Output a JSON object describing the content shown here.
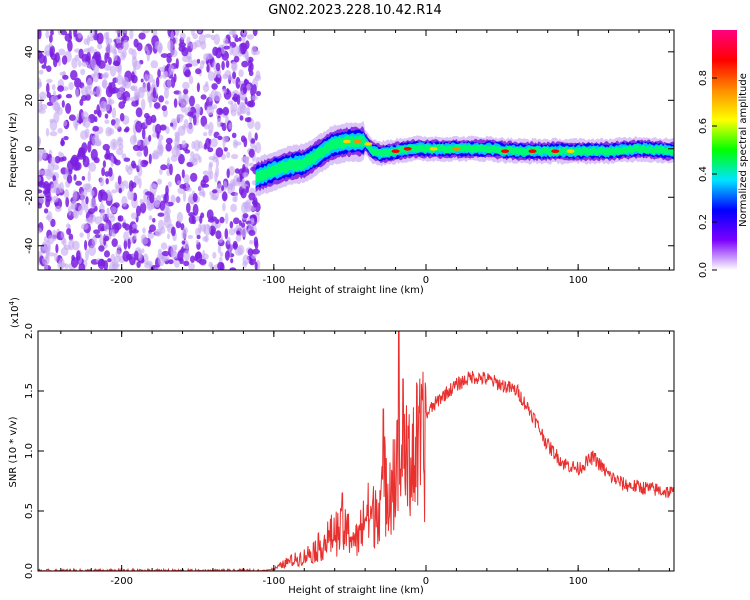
{
  "title": "GN02.2023.228.10.42.R14",
  "colors": {
    "snr_line": "#e8312f",
    "dense_noise": "#7a1ee0",
    "light_noise": "#c7a8f2"
  },
  "chart_data": [
    {
      "type": "heatmap",
      "xlabel": "Height of straight line (km)",
      "ylabel": "Frequency (Hz)",
      "xlim": [
        -255,
        163
      ],
      "ylim": [
        -50,
        49
      ],
      "x_ticks": [
        "-200",
        "-100",
        "0",
        "100"
      ],
      "y_ticks": [
        "-40",
        "-20",
        "0",
        "20",
        "40"
      ],
      "x_tick_values": [
        -200,
        -100,
        0,
        100
      ],
      "y_tick_values": [
        -40,
        -20,
        0,
        20,
        40
      ],
      "noise_region_x": [
        -255,
        -110
      ],
      "signal_track": {
        "x": [
          -112,
          -100,
          -90,
          -80,
          -70,
          -60,
          -50,
          -40,
          -35,
          -30,
          -20,
          -10,
          0,
          20,
          40,
          60,
          80,
          100,
          120,
          140,
          163
        ],
        "y": [
          -12,
          -9,
          -7,
          -6,
          -2,
          2,
          3,
          3,
          -1,
          -2,
          -1,
          0,
          0,
          0,
          0,
          -1,
          -1,
          -1,
          -1,
          0,
          -1
        ]
      },
      "colorbar": {
        "label": "Normalized spectral amplitude",
        "range": [
          0.0,
          1.0
        ],
        "ticks": [
          "0.0",
          "0.2",
          "0.4",
          "0.6",
          "0.8"
        ],
        "tick_values": [
          0.0,
          0.2,
          0.4,
          0.6,
          0.8
        ],
        "colormap": [
          "#ffffff",
          "#7b00ff",
          "#0000ff",
          "#00e5ff",
          "#00ff00",
          "#ffff00",
          "#ff8c00",
          "#ff0000",
          "#ff0080"
        ]
      }
    },
    {
      "type": "line",
      "xlabel": "Height of straight line (km)",
      "ylabel": "SNR (10 * v/v)",
      "y_multiplier": "(x10",
      "y_multiplier_exp": "4",
      "y_multiplier_close": ")",
      "xlim": [
        -255,
        163
      ],
      "ylim": [
        0.0,
        2.0
      ],
      "x_ticks": [
        "-200",
        "-100",
        "0",
        "100"
      ],
      "y_ticks": [
        "0.0",
        "0.5",
        "1.0",
        "1.5",
        "2.0"
      ],
      "x_tick_values": [
        -200,
        -100,
        0,
        100
      ],
      "y_tick_values": [
        0.0,
        0.5,
        1.0,
        1.5,
        2.0
      ],
      "series": [
        {
          "x": [
            -255,
            -110,
            -100,
            -90,
            -80,
            -70,
            -60,
            -50,
            -45,
            -40,
            -35,
            -30,
            -25,
            -20,
            -15,
            -10,
            0,
            10,
            20,
            30,
            40,
            50,
            60,
            70,
            80,
            90,
            100,
            110,
            120,
            130,
            140,
            150,
            163
          ],
          "y": [
            0.0,
            0.0,
            0.02,
            0.1,
            0.15,
            0.25,
            0.4,
            0.4,
            0.3,
            0.6,
            0.55,
            0.8,
            0.95,
            1.05,
            1.0,
            1.2,
            1.3,
            1.45,
            1.55,
            1.62,
            1.6,
            1.55,
            1.5,
            1.3,
            1.05,
            0.9,
            0.85,
            0.95,
            0.8,
            0.72,
            0.7,
            0.68,
            0.65
          ],
          "peaks": [
            [
              -18,
              2.0
            ],
            [
              -15,
              1.6
            ],
            [
              -28,
              1.35
            ],
            [
              -55,
              0.65
            ]
          ]
        }
      ]
    }
  ]
}
